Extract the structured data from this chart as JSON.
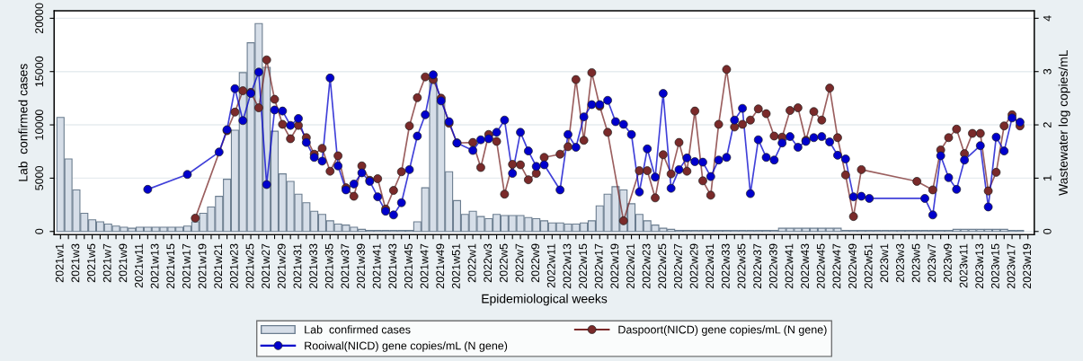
{
  "chart_data": {
    "type": "bar",
    "xlabel": "Epidemiological weeks",
    "ylabel": "Lab  confirmed cases",
    "y2label": "Wastewater log copies/mL",
    "categories": [
      "2021w1",
      null,
      "2021w3",
      null,
      "2021w5",
      null,
      "2021w7",
      null,
      "2021w9",
      null,
      "2021w11",
      null,
      "2021w13",
      null,
      "2021w15",
      null,
      "2021w17",
      null,
      "2021w19",
      null,
      "2021w21",
      null,
      "2021w23",
      null,
      "2021w25",
      null,
      "2021w27",
      null,
      "2021w29",
      null,
      "2021w31",
      null,
      "2021w33",
      null,
      "2021w35",
      null,
      "2021w37",
      null,
      "2021w39",
      null,
      "2021w41",
      null,
      "2021w43",
      null,
      "2021w45",
      null,
      "2021w47",
      null,
      "2021w49",
      null,
      "2021w51",
      null,
      "2022w1",
      null,
      "2022w3",
      null,
      "2022w5",
      null,
      "2022w7",
      null,
      "2022w9",
      null,
      "2022w11",
      null,
      "2022w13",
      null,
      "2022w15",
      null,
      "2022w17",
      null,
      "2022w19",
      null,
      "2022w21",
      null,
      "2022w23",
      null,
      "2022w25",
      null,
      "2022w27",
      null,
      "2022w29",
      null,
      "2022w31",
      null,
      "2022w33",
      null,
      "2022w35",
      null,
      "2022w37",
      null,
      "2022w39",
      null,
      "2022w41",
      null,
      "2022w43",
      null,
      "2022w45",
      null,
      "2022w47",
      null,
      "2022w49",
      null,
      "2022w51",
      null,
      "2023w1",
      null,
      "2023w3",
      null,
      "2023w5",
      null,
      "2023w7",
      null,
      "2023w9",
      null,
      "2023w11",
      null,
      "2023w13",
      null,
      "2023w15",
      null,
      "2023w17",
      null,
      "2023w19"
    ],
    "ylim": [
      -300,
      20700
    ],
    "yticks": [
      0,
      5000,
      10000,
      15000,
      20000
    ],
    "y2lim": [
      -0.06,
      4.14
    ],
    "y2ticks": [
      0,
      1,
      2,
      3,
      4
    ],
    "grid": "y",
    "legend": "bottom",
    "series": [
      {
        "name": "Lab  confirmed cases",
        "color": "#d6dee8",
        "values": [
          10700,
          6800,
          3900,
          1700,
          1100,
          900,
          700,
          500,
          400,
          300,
          400,
          400,
          400,
          400,
          400,
          400,
          500,
          900,
          1700,
          2300,
          3300,
          4900,
          9500,
          14900,
          17700,
          19500,
          15400,
          9400,
          5400,
          4700,
          3500,
          2700,
          1900,
          1600,
          1000,
          700,
          600,
          400,
          200,
          100,
          100,
          100,
          100,
          100,
          100,
          900,
          4100,
          14300,
          12600,
          5600,
          2900,
          1600,
          1900,
          1400,
          1200,
          1600,
          1500,
          1500,
          1500,
          1300,
          1200,
          1000,
          800,
          800,
          700,
          700,
          800,
          1000,
          2400,
          3500,
          4200,
          3900,
          2600,
          1600,
          1000,
          600,
          300,
          200,
          100,
          100,
          100,
          100,
          100,
          100,
          100,
          100,
          100,
          100,
          100,
          100,
          100,
          300,
          300,
          300,
          300,
          300,
          300,
          300,
          300,
          100,
          100,
          100,
          100,
          100,
          100,
          100,
          100,
          100,
          100,
          100,
          100,
          100,
          100,
          200,
          200,
          200,
          200,
          200,
          200,
          200,
          100,
          100,
          null
        ]
      },
      {
        "name": "Daspoort(NICD) gene copies/mL (N gene)",
        "type": "line",
        "axis": "y2",
        "marker": "circle",
        "color": "#7a2a2a",
        "values": [
          null,
          null,
          null,
          null,
          null,
          null,
          null,
          null,
          null,
          null,
          null,
          null,
          null,
          null,
          null,
          null,
          null,
          0.25,
          null,
          null,
          null,
          1.89,
          2.24,
          2.64,
          2.61,
          2.32,
          3.22,
          2.48,
          2.01,
          1.74,
          1.99,
          1.76,
          1.45,
          1.56,
          1.13,
          1.42,
          0.82,
          0.66,
          1.23,
          0.96,
          0.99,
          0.42,
          0.77,
          1.12,
          1.98,
          2.51,
          2.9,
          2.85,
          2.5,
          2.03,
          1.66,
          null,
          1.67,
          1.2,
          1.82,
          1.69,
          0.7,
          1.26,
          1.25,
          0.97,
          1.09,
          1.39,
          null,
          1.45,
          1.59,
          2.85,
          1.71,
          2.98,
          2.35,
          1.86,
          null,
          0.2,
          null,
          1.14,
          1.14,
          0.63,
          1.44,
          1.08,
          1.67,
          1.13,
          2.26,
          0.95,
          0.68,
          2.01,
          3.04,
          1.96,
          2.01,
          2.09,
          2.3,
          2.21,
          1.79,
          1.77,
          2.27,
          2.32,
          1.71,
          2.25,
          2.09,
          2.69,
          1.76,
          1.06,
          0.28,
          1.16,
          null,
          null,
          null,
          null,
          null,
          null,
          0.94,
          null,
          0.78,
          1.53,
          1.76,
          1.92,
          1.46,
          1.84,
          1.84,
          0.76,
          1.11,
          1.98,
          2.19,
          1.98,
          null
        ]
      },
      {
        "name": "Rooiwal(NICD) gene copies/mL (N gene)",
        "type": "line",
        "axis": "y2",
        "marker": "circle",
        "color": "#0000cc",
        "values": [
          null,
          null,
          null,
          null,
          null,
          null,
          null,
          null,
          null,
          null,
          null,
          0.79,
          null,
          null,
          null,
          null,
          1.07,
          null,
          null,
          null,
          1.49,
          1.91,
          2.68,
          2.08,
          2.59,
          2.99,
          0.88,
          2.28,
          2.26,
          1.99,
          2.12,
          1.67,
          1.39,
          1.32,
          2.88,
          1.23,
          0.78,
          0.89,
          1.1,
          0.94,
          0.65,
          0.38,
          0.31,
          0.54,
          1.16,
          1.79,
          2.19,
          2.94,
          2.45,
          2.06,
          1.66,
          null,
          1.52,
          1.72,
          1.74,
          1.86,
          2.09,
          1.09,
          1.86,
          1.51,
          1.22,
          1.25,
          null,
          0.78,
          1.82,
          1.58,
          2.15,
          2.38,
          2.38,
          2.46,
          2.06,
          2.01,
          1.82,
          0.74,
          1.55,
          1.02,
          2.59,
          0.81,
          1.16,
          1.38,
          1.31,
          1.3,
          1.03,
          1.34,
          1.39,
          2.09,
          2.31,
          0.71,
          1.72,
          1.39,
          1.34,
          1.66,
          1.78,
          1.58,
          1.69,
          1.76,
          1.78,
          1.68,
          1.43,
          1.36,
          0.65,
          0.66,
          0.62,
          null,
          null,
          null,
          null,
          null,
          null,
          0.62,
          0.31,
          1.42,
          1.01,
          0.79,
          1.34,
          null,
          1.61,
          0.46,
          1.77,
          1.51,
          2.13,
          2.05,
          null
        ]
      }
    ]
  }
}
